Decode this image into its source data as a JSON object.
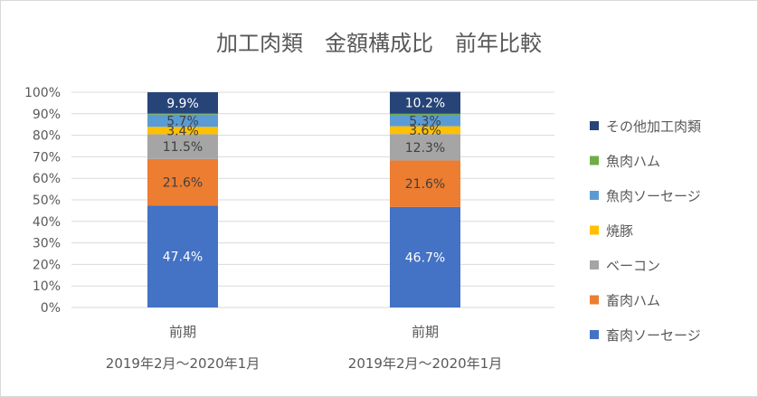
{
  "chart_data": {
    "type": "bar",
    "stacked": true,
    "percent_stacked": true,
    "title": "加工肉類　金額構成比　前年比較",
    "categories": [
      [
        "前期",
        "2019年2月～2020年1月"
      ],
      [
        "前期",
        "2019年2月～2020年1月"
      ]
    ],
    "ylim": [
      0,
      100
    ],
    "yticks": [
      "0%",
      "10%",
      "20%",
      "30%",
      "40%",
      "50%",
      "60%",
      "70%",
      "80%",
      "90%",
      "100%"
    ],
    "grid": true,
    "legend_position": "right",
    "series": [
      {
        "name": "畜肉ソーセージ",
        "color": "#4472c4",
        "values": [
          47.4,
          46.7
        ],
        "labels": [
          "47.4%",
          "46.7%"
        ],
        "label_color": "#ffffff"
      },
      {
        "name": "畜肉ハム",
        "color": "#ed7d31",
        "values": [
          21.6,
          21.6
        ],
        "labels": [
          "21.6%",
          "21.6%"
        ],
        "label_color": "#404040"
      },
      {
        "name": "ベーコン",
        "color": "#a5a5a5",
        "values": [
          11.5,
          12.3
        ],
        "labels": [
          "11.5%",
          "12.3%"
        ],
        "label_color": "#404040"
      },
      {
        "name": "焼豚",
        "color": "#ffc000",
        "values": [
          3.4,
          3.6
        ],
        "labels": [
          "3.4%",
          "3.6%"
        ],
        "label_color": "#404040"
      },
      {
        "name": "魚肉ソーセージ",
        "color": "#5b9bd5",
        "values": [
          5.7,
          5.3
        ],
        "labels": [
          "5.7%",
          "5.3%"
        ],
        "label_color": "#404040"
      },
      {
        "name": "魚肉ハム",
        "color": "#70ad47",
        "values": [
          0.5,
          0.5
        ],
        "labels": [
          "",
          ""
        ],
        "label_color": "#404040"
      },
      {
        "name": "その他加工肉類",
        "color": "#264478",
        "values": [
          9.9,
          10.2
        ],
        "labels": [
          "9.9%",
          "10.2%"
        ],
        "label_color": "#ffffff"
      }
    ]
  }
}
